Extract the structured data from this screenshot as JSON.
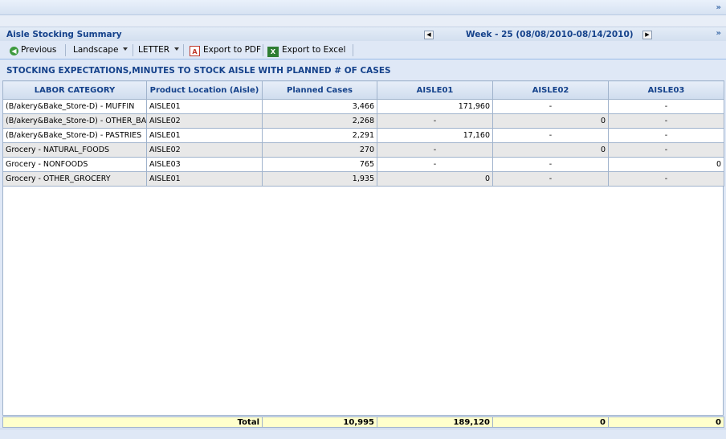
{
  "panel": {
    "title": "Aisle Stocking Summary",
    "week_label": "Week - 25 (08/08/2010-08/14/2010)",
    "collapse_glyph": "»"
  },
  "toolbar": {
    "previous": "Previous",
    "orientation": "Landscape",
    "paper": "LETTER",
    "export_pdf": "Export to PDF",
    "export_excel": "Export to Excel"
  },
  "report": {
    "heading": "STOCKING EXPECTATIONS,MINUTES TO STOCK AISLE WITH PLANNED # OF CASES"
  },
  "table": {
    "columns": [
      "LABOR CATEGORY",
      "Product Location (Aisle)",
      "Planned Cases",
      "AISLE01",
      "AISLE02",
      "AISLE03"
    ],
    "rows": [
      [
        "(B/akery&Bake_Store-D) - MUFFIN",
        "AISLE01",
        "3,466",
        "171,960",
        "-",
        "-"
      ],
      [
        "(B/akery&Bake_Store-D) - OTHER_BAKERY",
        "AISLE02",
        "2,268",
        "-",
        "0",
        "-"
      ],
      [
        "(B/akery&Bake_Store-D) - PASTRIES",
        "AISLE01",
        "2,291",
        "17,160",
        "-",
        "-"
      ],
      [
        "Grocery - NATURAL_FOODS",
        "AISLE02",
        "270",
        "-",
        "0",
        "-"
      ],
      [
        "Grocery - NONFOODS",
        "AISLE03",
        "765",
        "-",
        "-",
        "0"
      ],
      [
        "Grocery - OTHER_GROCERY",
        "AISLE01",
        "1,935",
        "0",
        "-",
        "-"
      ]
    ],
    "total": {
      "label": "Total",
      "planned": "10,995",
      "aisle01": "189,120",
      "aisle02": "0",
      "aisle03": "0"
    }
  },
  "icons": {
    "previous": "green-back-arrow-icon",
    "pdf": "pdf-icon",
    "excel": "excel-icon"
  }
}
